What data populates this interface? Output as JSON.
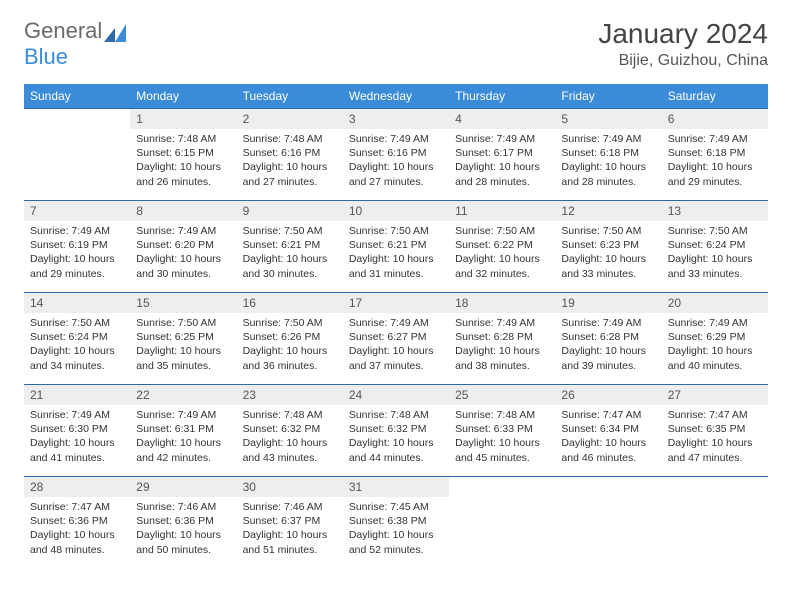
{
  "logo": {
    "part1": "General",
    "part2": "Blue"
  },
  "header": {
    "title": "January 2024",
    "location": "Bijie, Guizhou, China"
  },
  "colors": {
    "header_bg": "#3a8bd8",
    "header_text": "#ffffff",
    "daynum_bg": "#eceef0",
    "border": "#2f6aa8",
    "text": "#333333"
  },
  "weekdays": [
    "Sunday",
    "Monday",
    "Tuesday",
    "Wednesday",
    "Thursday",
    "Friday",
    "Saturday"
  ],
  "first_day_of_week_index": 1,
  "days": [
    {
      "n": 1,
      "sunrise": "7:48 AM",
      "sunset": "6:15 PM",
      "daylight": "10 hours and 26 minutes."
    },
    {
      "n": 2,
      "sunrise": "7:48 AM",
      "sunset": "6:16 PM",
      "daylight": "10 hours and 27 minutes."
    },
    {
      "n": 3,
      "sunrise": "7:49 AM",
      "sunset": "6:16 PM",
      "daylight": "10 hours and 27 minutes."
    },
    {
      "n": 4,
      "sunrise": "7:49 AM",
      "sunset": "6:17 PM",
      "daylight": "10 hours and 28 minutes."
    },
    {
      "n": 5,
      "sunrise": "7:49 AM",
      "sunset": "6:18 PM",
      "daylight": "10 hours and 28 minutes."
    },
    {
      "n": 6,
      "sunrise": "7:49 AM",
      "sunset": "6:18 PM",
      "daylight": "10 hours and 29 minutes."
    },
    {
      "n": 7,
      "sunrise": "7:49 AM",
      "sunset": "6:19 PM",
      "daylight": "10 hours and 29 minutes."
    },
    {
      "n": 8,
      "sunrise": "7:49 AM",
      "sunset": "6:20 PM",
      "daylight": "10 hours and 30 minutes."
    },
    {
      "n": 9,
      "sunrise": "7:50 AM",
      "sunset": "6:21 PM",
      "daylight": "10 hours and 30 minutes."
    },
    {
      "n": 10,
      "sunrise": "7:50 AM",
      "sunset": "6:21 PM",
      "daylight": "10 hours and 31 minutes."
    },
    {
      "n": 11,
      "sunrise": "7:50 AM",
      "sunset": "6:22 PM",
      "daylight": "10 hours and 32 minutes."
    },
    {
      "n": 12,
      "sunrise": "7:50 AM",
      "sunset": "6:23 PM",
      "daylight": "10 hours and 33 minutes."
    },
    {
      "n": 13,
      "sunrise": "7:50 AM",
      "sunset": "6:24 PM",
      "daylight": "10 hours and 33 minutes."
    },
    {
      "n": 14,
      "sunrise": "7:50 AM",
      "sunset": "6:24 PM",
      "daylight": "10 hours and 34 minutes."
    },
    {
      "n": 15,
      "sunrise": "7:50 AM",
      "sunset": "6:25 PM",
      "daylight": "10 hours and 35 minutes."
    },
    {
      "n": 16,
      "sunrise": "7:50 AM",
      "sunset": "6:26 PM",
      "daylight": "10 hours and 36 minutes."
    },
    {
      "n": 17,
      "sunrise": "7:49 AM",
      "sunset": "6:27 PM",
      "daylight": "10 hours and 37 minutes."
    },
    {
      "n": 18,
      "sunrise": "7:49 AM",
      "sunset": "6:28 PM",
      "daylight": "10 hours and 38 minutes."
    },
    {
      "n": 19,
      "sunrise": "7:49 AM",
      "sunset": "6:28 PM",
      "daylight": "10 hours and 39 minutes."
    },
    {
      "n": 20,
      "sunrise": "7:49 AM",
      "sunset": "6:29 PM",
      "daylight": "10 hours and 40 minutes."
    },
    {
      "n": 21,
      "sunrise": "7:49 AM",
      "sunset": "6:30 PM",
      "daylight": "10 hours and 41 minutes."
    },
    {
      "n": 22,
      "sunrise": "7:49 AM",
      "sunset": "6:31 PM",
      "daylight": "10 hours and 42 minutes."
    },
    {
      "n": 23,
      "sunrise": "7:48 AM",
      "sunset": "6:32 PM",
      "daylight": "10 hours and 43 minutes."
    },
    {
      "n": 24,
      "sunrise": "7:48 AM",
      "sunset": "6:32 PM",
      "daylight": "10 hours and 44 minutes."
    },
    {
      "n": 25,
      "sunrise": "7:48 AM",
      "sunset": "6:33 PM",
      "daylight": "10 hours and 45 minutes."
    },
    {
      "n": 26,
      "sunrise": "7:47 AM",
      "sunset": "6:34 PM",
      "daylight": "10 hours and 46 minutes."
    },
    {
      "n": 27,
      "sunrise": "7:47 AM",
      "sunset": "6:35 PM",
      "daylight": "10 hours and 47 minutes."
    },
    {
      "n": 28,
      "sunrise": "7:47 AM",
      "sunset": "6:36 PM",
      "daylight": "10 hours and 48 minutes."
    },
    {
      "n": 29,
      "sunrise": "7:46 AM",
      "sunset": "6:36 PM",
      "daylight": "10 hours and 50 minutes."
    },
    {
      "n": 30,
      "sunrise": "7:46 AM",
      "sunset": "6:37 PM",
      "daylight": "10 hours and 51 minutes."
    },
    {
      "n": 31,
      "sunrise": "7:45 AM",
      "sunset": "6:38 PM",
      "daylight": "10 hours and 52 minutes."
    }
  ],
  "labels": {
    "sunrise": "Sunrise:",
    "sunset": "Sunset:",
    "daylight": "Daylight:"
  }
}
